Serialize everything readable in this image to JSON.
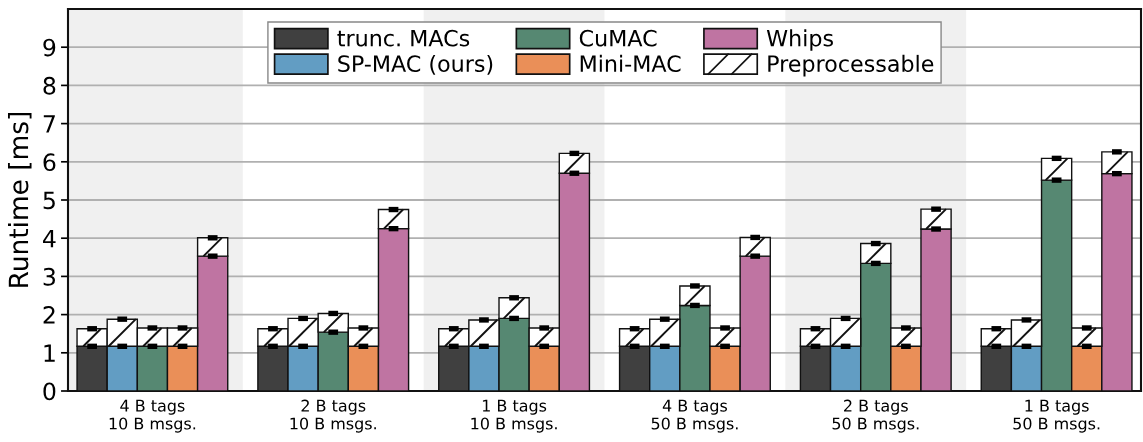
{
  "chart_data": {
    "type": "bar",
    "stacked": true,
    "categories": [
      null,
      null,
      "4 B tags\n10 B msgs.",
      null,
      null,
      null,
      null,
      null,
      "2 B tags\n10 B msgs.",
      null,
      null,
      null,
      null,
      null,
      "1 B tags\n10 B msgs.",
      null,
      null,
      null,
      null,
      null,
      "4 B tags\n50 B msgs.",
      null,
      null,
      null,
      null,
      null,
      "2 B tags\n50 B msgs.",
      null,
      null,
      null,
      null,
      null,
      "1 B tags\n50 B msgs.",
      null,
      null
    ],
    "ylabel": "Runtime [ms]",
    "ylim": [
      0,
      10
    ],
    "yticks": [
      0,
      1,
      2,
      3,
      4,
      5,
      6,
      7,
      8,
      9
    ],
    "grid": "y",
    "legend": "top",
    "series": [
      {
        "name": "trunc. MACs",
        "color": "#404040",
        "values": [
          1.17,
          null,
          null,
          null,
          null,
          null,
          1.17,
          null,
          null,
          null,
          null,
          null,
          1.17,
          null,
          null,
          null,
          null,
          null,
          1.17,
          null,
          null,
          null,
          null,
          null,
          1.17,
          null,
          null,
          null,
          null,
          null,
          1.17,
          null,
          null,
          null,
          null
        ],
        "errors": [
          0.03,
          null,
          null,
          null,
          null,
          null,
          0.03,
          null,
          null,
          null,
          null,
          null,
          0.03,
          null,
          null,
          null,
          null,
          null,
          0.03,
          null,
          null,
          null,
          null,
          null,
          0.03,
          null,
          null,
          null,
          null,
          null,
          0.03,
          null,
          null,
          null,
          null
        ]
      },
      {
        "name": "SP-MAC (ours)",
        "color": "#629dc3",
        "values": [
          null,
          1.17,
          null,
          null,
          null,
          null,
          null,
          1.17,
          null,
          null,
          null,
          null,
          null,
          1.17,
          null,
          null,
          null,
          null,
          null,
          1.17,
          null,
          null,
          null,
          null,
          null,
          1.17,
          null,
          null,
          null,
          null,
          null,
          1.17,
          null,
          null,
          null
        ],
        "errors": [
          null,
          0.03,
          null,
          null,
          null,
          null,
          null,
          0.03,
          null,
          null,
          null,
          null,
          null,
          0.03,
          null,
          null,
          null,
          null,
          null,
          0.03,
          null,
          null,
          null,
          null,
          null,
          0.03,
          null,
          null,
          null,
          null,
          null,
          0.03,
          null,
          null,
          null
        ]
      },
      {
        "name": "CuMAC",
        "color": "#568872",
        "values": [
          null,
          null,
          1.17,
          null,
          null,
          null,
          null,
          null,
          1.54,
          null,
          null,
          null,
          null,
          null,
          1.9,
          null,
          null,
          null,
          null,
          null,
          2.24,
          null,
          null,
          null,
          null,
          null,
          3.34,
          null,
          null,
          null,
          null,
          null,
          5.52,
          null,
          null
        ],
        "errors": [
          null,
          null,
          0.03,
          null,
          null,
          null,
          null,
          null,
          0.03,
          null,
          null,
          null,
          null,
          null,
          0.03,
          null,
          null,
          null,
          null,
          null,
          0.03,
          null,
          null,
          null,
          null,
          null,
          0.03,
          null,
          null,
          null,
          null,
          null,
          0.03,
          null,
          null
        ]
      },
      {
        "name": "Mini-MAC",
        "color": "#ea8f58",
        "values": [
          null,
          null,
          null,
          1.17,
          null,
          null,
          null,
          null,
          null,
          1.17,
          null,
          null,
          null,
          null,
          null,
          1.17,
          null,
          null,
          null,
          null,
          null,
          1.17,
          null,
          null,
          null,
          null,
          null,
          1.17,
          null,
          null,
          null,
          null,
          null,
          1.17,
          null
        ],
        "errors": [
          null,
          null,
          null,
          0.03,
          null,
          null,
          null,
          null,
          null,
          0.03,
          null,
          null,
          null,
          null,
          null,
          0.03,
          null,
          null,
          null,
          null,
          null,
          0.03,
          null,
          null,
          null,
          null,
          null,
          0.03,
          null,
          null,
          null,
          null,
          null,
          0.03,
          null
        ]
      },
      {
        "name": "Whips",
        "color": "#bf74a2",
        "values": [
          null,
          null,
          null,
          null,
          3.53,
          null,
          null,
          null,
          null,
          null,
          4.25,
          null,
          null,
          null,
          null,
          null,
          5.7,
          null,
          null,
          null,
          null,
          null,
          3.53,
          null,
          null,
          null,
          null,
          null,
          4.24,
          null,
          null,
          null,
          null,
          null,
          5.69
        ],
        "errors": [
          null,
          null,
          null,
          null,
          0.03,
          null,
          null,
          null,
          null,
          null,
          0.03,
          null,
          null,
          null,
          null,
          null,
          0.03,
          null,
          null,
          null,
          null,
          null,
          0.03,
          null,
          null,
          null,
          null,
          null,
          0.03,
          null,
          null,
          null,
          null,
          null,
          0.03
        ]
      },
      {
        "name": "Preprocessable",
        "color": "#ffffff",
        "values": [
          0.46,
          0.71,
          0.48,
          0.48,
          0.48,
          null,
          0.46,
          0.73,
          0.49,
          0.48,
          0.5,
          null,
          0.46,
          0.69,
          0.54,
          0.48,
          0.52,
          null,
          0.46,
          0.71,
          0.51,
          0.48,
          0.49,
          null,
          0.46,
          0.73,
          0.52,
          0.48,
          0.52,
          null,
          0.46,
          0.69,
          0.57,
          0.48,
          0.57
        ],
        "errors": [
          0.03,
          0.03,
          0.03,
          0.03,
          0.03,
          null,
          0.03,
          0.03,
          0.03,
          0.03,
          0.03,
          null,
          0.03,
          0.03,
          0.03,
          0.03,
          0.03,
          null,
          0.03,
          0.03,
          0.03,
          0.03,
          0.03,
          null,
          0.03,
          0.03,
          0.03,
          0.03,
          0.03,
          null,
          0.03,
          0.03,
          0.03,
          0.03,
          0.03
        ]
      }
    ]
  }
}
